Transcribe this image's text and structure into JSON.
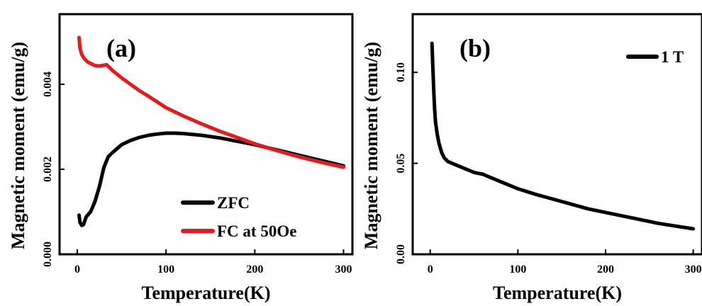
{
  "chart_data": [
    {
      "type": "line",
      "panel_label": "(a)",
      "xlabel": "Temperature(K)",
      "ylabel": "Magnetic moment (emu/g)",
      "xlim": [
        -20,
        310
      ],
      "ylim": [
        0.0,
        0.00565
      ],
      "xticks": [
        0,
        100,
        200,
        300
      ],
      "yticks": [
        0.0,
        0.002,
        0.004
      ],
      "ytick_labels": [
        "0.000",
        "0.002",
        "0.004"
      ],
      "legend_position": "bottom-right",
      "series": [
        {
          "name": "ZFC",
          "color": "#000000",
          "x": [
            2,
            3,
            5,
            7,
            10,
            15,
            20,
            25,
            30,
            35,
            40,
            50,
            60,
            70,
            80,
            90,
            100,
            110,
            120,
            140,
            160,
            180,
            200,
            220,
            240,
            260,
            280,
            300
          ],
          "y": [
            0.00092,
            0.00075,
            0.00068,
            0.0007,
            0.00088,
            0.001,
            0.00125,
            0.0016,
            0.00205,
            0.0023,
            0.0024,
            0.00258,
            0.00268,
            0.00275,
            0.0028,
            0.00283,
            0.00285,
            0.00285,
            0.00284,
            0.0028,
            0.00274,
            0.00266,
            0.00258,
            0.00248,
            0.00238,
            0.00228,
            0.00218,
            0.00208
          ]
        },
        {
          "name": "FC at 50Oe",
          "color": "#e8191c",
          "x": [
            2,
            3,
            5,
            8,
            12,
            16,
            20,
            25,
            30,
            33,
            36,
            40,
            50,
            60,
            70,
            80,
            100,
            120,
            140,
            160,
            180,
            200,
            220,
            240,
            260,
            280,
            300
          ],
          "y": [
            0.0051,
            0.00485,
            0.0047,
            0.0046,
            0.00452,
            0.00448,
            0.00444,
            0.00443,
            0.00445,
            0.00446,
            0.0044,
            0.00432,
            0.00415,
            0.004,
            0.00385,
            0.00372,
            0.00345,
            0.00325,
            0.00307,
            0.0029,
            0.00275,
            0.0026,
            0.00247,
            0.00235,
            0.00224,
            0.00214,
            0.00205
          ]
        }
      ]
    },
    {
      "type": "line",
      "panel_label": "(b)",
      "xlabel": "Temperature(K)",
      "ylabel": "Magnetic moment (emu/g)",
      "xlim": [
        -20,
        310
      ],
      "ylim": [
        0.0,
        0.132
      ],
      "xticks": [
        0,
        100,
        200,
        300
      ],
      "yticks": [
        0.0,
        0.05,
        0.1
      ],
      "ytick_labels": [
        "0.00",
        "0.05",
        "0.10"
      ],
      "legend_position": "top-right",
      "series": [
        {
          "name": "1 T",
          "color": "#000000",
          "x": [
            2,
            3,
            4,
            5,
            6,
            8,
            10,
            13,
            16,
            20,
            25,
            30,
            40,
            50,
            60,
            80,
            100,
            120,
            150,
            180,
            200,
            230,
            260,
            280,
            300
          ],
          "y": [
            0.116,
            0.103,
            0.09,
            0.08,
            0.073,
            0.066,
            0.061,
            0.056,
            0.053,
            0.051,
            0.05,
            0.049,
            0.047,
            0.045,
            0.044,
            0.04,
            0.036,
            0.033,
            0.029,
            0.025,
            0.023,
            0.02,
            0.017,
            0.0155,
            0.014
          ]
        }
      ]
    }
  ]
}
